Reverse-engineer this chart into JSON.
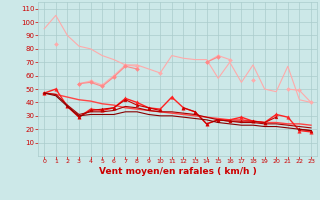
{
  "x": [
    0,
    1,
    2,
    3,
    4,
    5,
    6,
    7,
    8,
    9,
    10,
    11,
    12,
    13,
    14,
    15,
    16,
    17,
    18,
    19,
    20,
    21,
    22,
    23
  ],
  "series": [
    {
      "color": "#ffaaaa",
      "linewidth": 0.8,
      "marker": null,
      "markersize": 0,
      "values": [
        95,
        105,
        90,
        82,
        80,
        75,
        72,
        68,
        68,
        65,
        62,
        75,
        73,
        72,
        72,
        58,
        70,
        55,
        68,
        50,
        48,
        67,
        42,
        40
      ]
    },
    {
      "color": "#ffaaaa",
      "linewidth": 0.8,
      "marker": "D",
      "markersize": 2,
      "values": [
        null,
        84,
        null,
        54,
        56,
        53,
        60,
        68,
        67,
        null,
        62,
        null,
        null,
        null,
        70,
        75,
        72,
        null,
        57,
        null,
        null,
        50,
        49,
        40
      ]
    },
    {
      "color": "#ff8888",
      "linewidth": 0.8,
      "marker": "D",
      "markersize": 2,
      "values": [
        47,
        null,
        null,
        54,
        55,
        52,
        59,
        67,
        65,
        null,
        null,
        null,
        null,
        null,
        70,
        74,
        null,
        null,
        null,
        null,
        null,
        null,
        null,
        null
      ]
    },
    {
      "color": "#ff4444",
      "linewidth": 1.0,
      "marker": null,
      "markersize": 0,
      "values": [
        47,
        46,
        44,
        42,
        41,
        39,
        38,
        36,
        35,
        34,
        33,
        32,
        31,
        30,
        29,
        28,
        27,
        27,
        26,
        25,
        25,
        24,
        24,
        23
      ]
    },
    {
      "color": "#ff2222",
      "linewidth": 1.0,
      "marker": "^",
      "markersize": 2.5,
      "values": [
        47,
        50,
        37,
        29,
        35,
        34,
        36,
        43,
        40,
        36,
        35,
        44,
        36,
        33,
        24,
        27,
        27,
        29,
        26,
        25,
        31,
        29,
        19,
        18
      ]
    },
    {
      "color": "#cc0000",
      "linewidth": 0.8,
      "marker": "^",
      "markersize": 2,
      "values": [
        47,
        null,
        37,
        29,
        34,
        35,
        36,
        42,
        38,
        36,
        34,
        null,
        36,
        33,
        24,
        27,
        26,
        26,
        26,
        25,
        29,
        null,
        20,
        19
      ]
    },
    {
      "color": "#aa0000",
      "linewidth": 0.8,
      "marker": null,
      "markersize": 0,
      "values": [
        47,
        46,
        38,
        31,
        33,
        33,
        34,
        37,
        36,
        34,
        33,
        33,
        32,
        31,
        29,
        27,
        26,
        25,
        25,
        24,
        24,
        23,
        22,
        21
      ]
    },
    {
      "color": "#880000",
      "linewidth": 0.8,
      "marker": null,
      "markersize": 0,
      "values": [
        47,
        45,
        37,
        30,
        31,
        31,
        31,
        33,
        33,
        31,
        30,
        30,
        29,
        28,
        27,
        25,
        24,
        23,
        23,
        22,
        22,
        21,
        20,
        19
      ]
    }
  ],
  "xlim": [
    -0.5,
    23.5
  ],
  "ylim": [
    0,
    115
  ],
  "yticks": [
    10,
    20,
    30,
    40,
    50,
    60,
    70,
    80,
    90,
    100,
    110
  ],
  "xlabel": "Vent moyen/en rafales ( km/h )",
  "background_color": "#cce8e8",
  "grid_color": "#aacccc",
  "xlabel_color": "#cc0000",
  "tick_color": "#cc0000"
}
